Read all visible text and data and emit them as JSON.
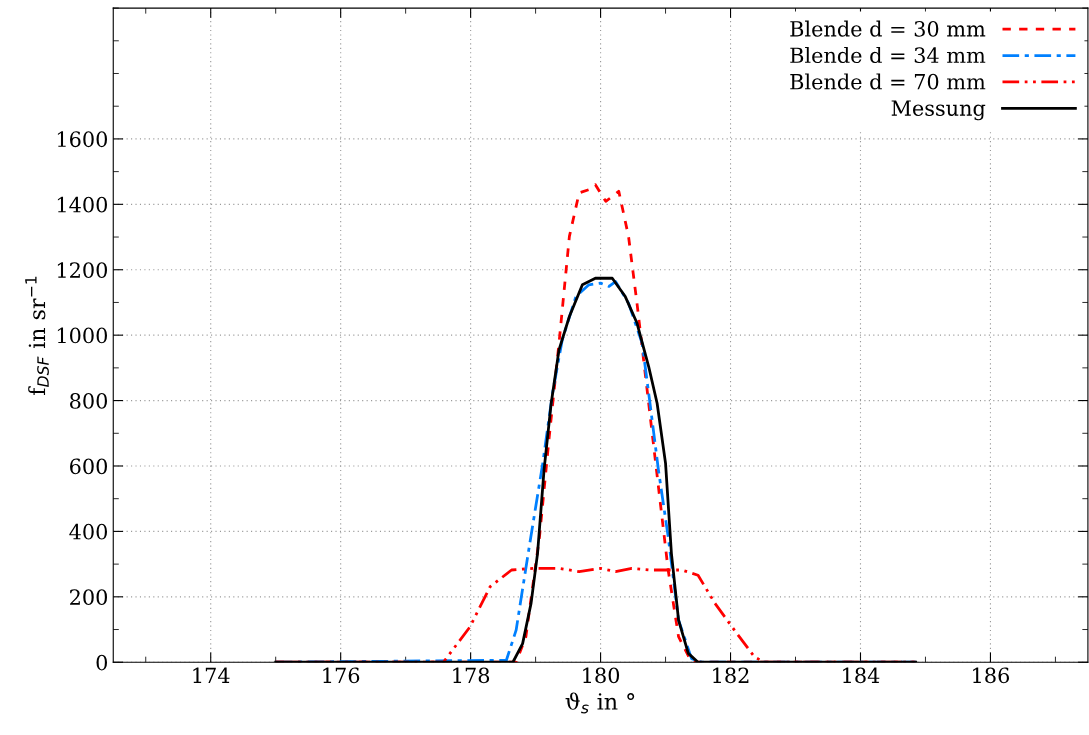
{
  "chart_data": {
    "type": "line",
    "xlabel": "ϑ$_{s}$ in °",
    "ylabel": "f$_{DSF}$ in sr$^{−1}$",
    "xlim": [
      172.5,
      187.5
    ],
    "ylim": [
      0,
      2000
    ],
    "xticks": [
      174,
      176,
      178,
      180,
      182,
      184,
      186
    ],
    "yticks": [
      0,
      200,
      400,
      600,
      800,
      1000,
      1200,
      1400,
      1600
    ],
    "grid": true,
    "legend": "top right",
    "marker": "none",
    "series": [
      {
        "name": "Blende d = 30 mm",
        "color": "#ff0000",
        "line_style": "dashed",
        "x": [
          175,
          178.7,
          178.85,
          179.06,
          179.21,
          179.36,
          179.52,
          179.67,
          179.82,
          179.92,
          180.08,
          180.18,
          180.28,
          180.43,
          180.56,
          180.74,
          180.89,
          181.04,
          181.2,
          181.4,
          184.85
        ],
        "values": [
          0,
          0,
          78,
          384,
          690,
          975,
          1302,
          1435,
          1445,
          1460,
          1409,
          1424,
          1440,
          1302,
          1098,
          792,
          537,
          282,
          78,
          0,
          0
        ]
      },
      {
        "name": "Blende d = 34 mm",
        "color": "#0080ff",
        "line_style": "dashdot",
        "x": [
          175,
          178.55,
          178.7,
          178.91,
          179.11,
          179.26,
          179.41,
          179.62,
          179.82,
          180.0,
          180.13,
          180.23,
          180.43,
          180.64,
          180.76,
          180.89,
          181.04,
          181.2,
          181.4,
          181.55,
          184.85
        ],
        "values": [
          0,
          6,
          98,
          363,
          608,
          822,
          986,
          1118,
          1154,
          1159,
          1149,
          1164,
          1098,
          975,
          792,
          588,
          384,
          129,
          11,
          0,
          0
        ]
      },
      {
        "name": "Blende d = 70 mm",
        "color": "#ff0000",
        "line_style": "dashdotdot",
        "x": [
          175,
          177.58,
          177.99,
          178.3,
          178.63,
          178.96,
          179.36,
          179.67,
          180.0,
          180.23,
          180.48,
          180.74,
          181.25,
          181.5,
          181.76,
          182.06,
          182.37,
          182.52,
          184.85
        ],
        "values": [
          0,
          0,
          108,
          231,
          282,
          287,
          287,
          277,
          287,
          277,
          287,
          282,
          282,
          266,
          180,
          98,
          16,
          0,
          0
        ]
      },
      {
        "name": "Messung",
        "color": "#000000",
        "line_style": "solid",
        "x": [
          175,
          178.65,
          178.8,
          178.93,
          179.03,
          179.13,
          179.24,
          179.36,
          179.52,
          179.72,
          179.92,
          180.18,
          180.38,
          180.56,
          180.74,
          180.87,
          181.0,
          181.09,
          181.2,
          181.35,
          181.5,
          184.85
        ],
        "values": [
          0,
          0,
          57,
          180,
          333,
          588,
          792,
          955,
          1057,
          1154,
          1174,
          1174,
          1118,
          1037,
          904,
          792,
          608,
          333,
          129,
          27,
          0,
          0
        ]
      }
    ]
  }
}
